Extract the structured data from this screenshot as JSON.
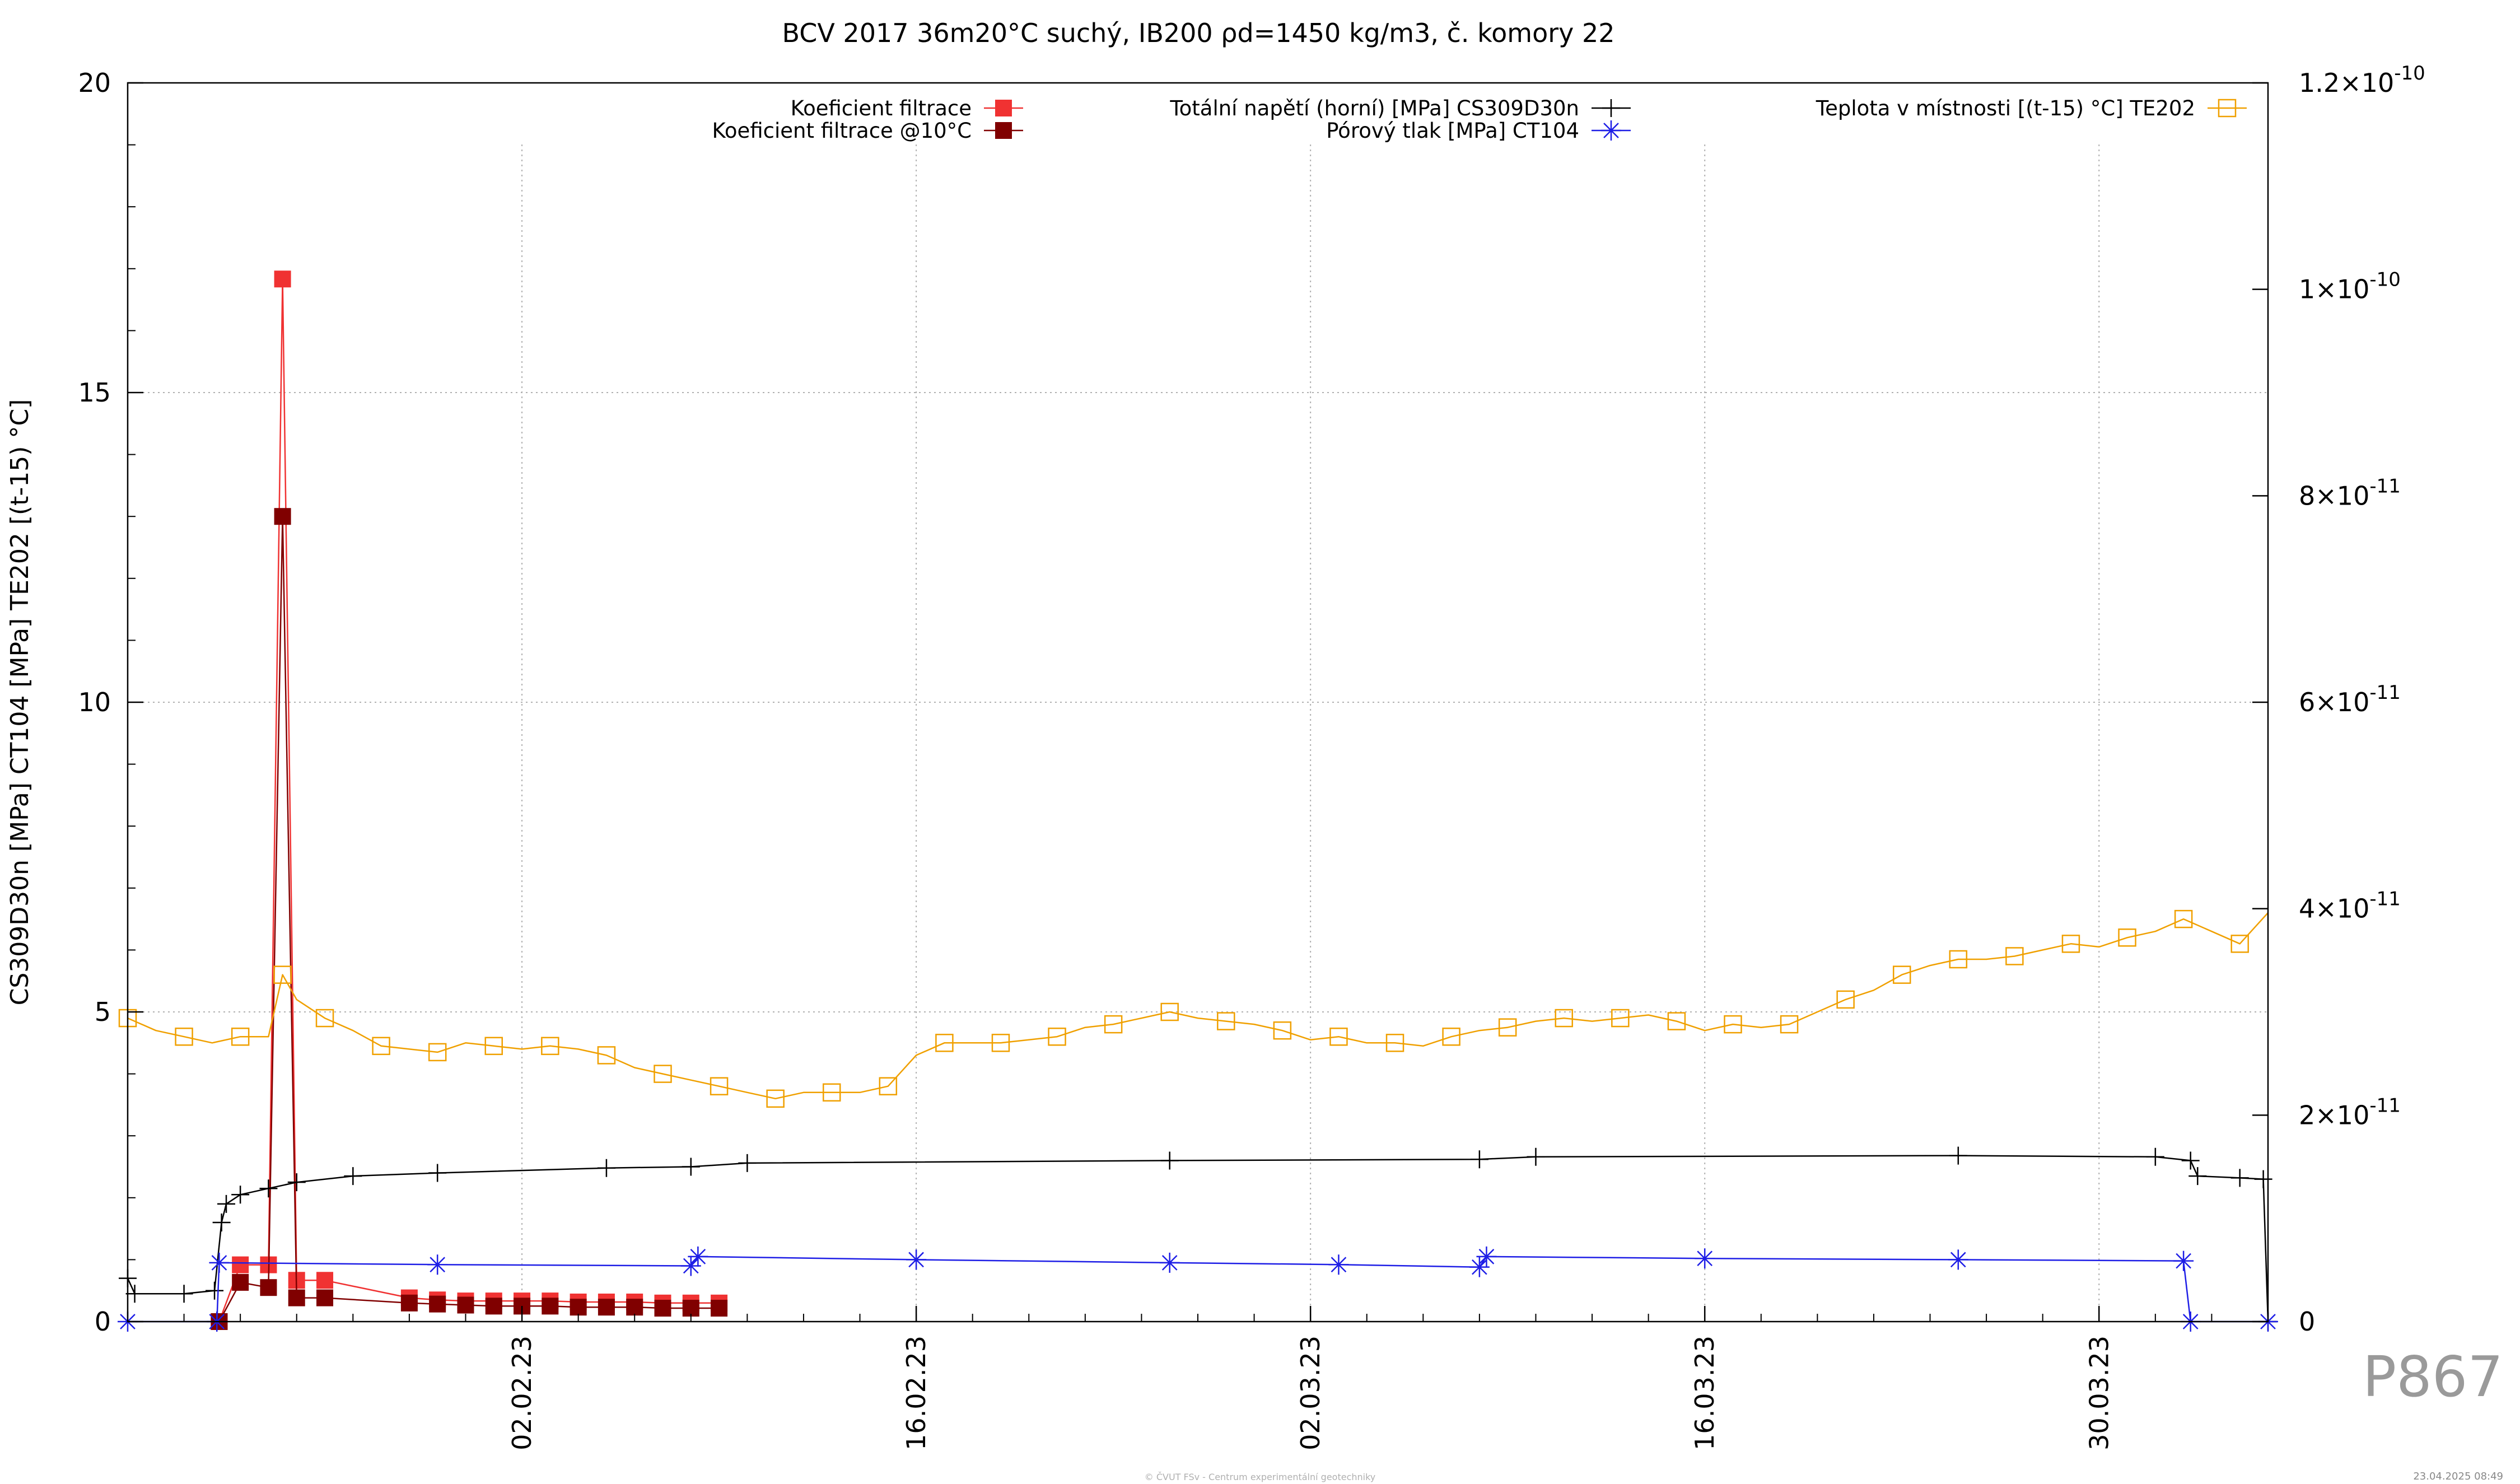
{
  "chart_data": {
    "type": "line",
    "title": "BCV 2017 36m20°C suchý, IB200 ρd=1450 kg/m3, č. komory 22",
    "ylabel_left": "CS309D30n [MPa] CT104 [MPa] TE202 [(t-15) °C]",
    "ylabel_right": "",
    "x_range": [
      "2023-01-19",
      "2023-04-05"
    ],
    "ylim_left": [
      0,
      20
    ],
    "ylim_right": [
      0,
      1.2e-10
    ],
    "yticks_left": [
      "0",
      "5",
      "10",
      "15",
      "20"
    ],
    "yticks_right": [
      {
        "value": 0,
        "base": "0",
        "exp": ""
      },
      {
        "value": 2e-11,
        "base": "2×10",
        "exp": "-11"
      },
      {
        "value": 4e-11,
        "base": "4×10",
        "exp": "-11"
      },
      {
        "value": 6e-11,
        "base": "6×10",
        "exp": "-11"
      },
      {
        "value": 8e-11,
        "base": "8×10",
        "exp": "-11"
      },
      {
        "value": 1e-10,
        "base": "1×10",
        "exp": "-10"
      },
      {
        "value": 1.2e-10,
        "base": "1.2×10",
        "exp": "-10"
      }
    ],
    "xticks": [
      {
        "date": "2023-02-02",
        "label": "02.02.23"
      },
      {
        "date": "2023-02-16",
        "label": "16.02.23"
      },
      {
        "date": "2023-03-02",
        "label": "02.03.23"
      },
      {
        "date": "2023-03-16",
        "label": "16.03.23"
      },
      {
        "date": "2023-03-30",
        "label": "30.03.23"
      }
    ],
    "grid": true,
    "legend_placement": "top",
    "series": [
      {
        "name": "Koeficient filtrace",
        "axis": "right",
        "color": "#f03232",
        "marker": "filled-square",
        "points": [
          [
            "2023-01-22 06:00",
            0
          ],
          [
            "2023-01-23",
            5.5e-12
          ],
          [
            "2023-01-24",
            5.5e-12
          ],
          [
            "2023-01-24 12:00",
            1.01e-10
          ],
          [
            "2023-01-25",
            4e-12
          ],
          [
            "2023-01-26",
            4e-12
          ],
          [
            "2023-01-29",
            2.3e-12
          ],
          [
            "2023-01-30",
            2.1e-12
          ],
          [
            "2023-01-31",
            2e-12
          ],
          [
            "2023-02-01",
            2e-12
          ],
          [
            "2023-02-02",
            2e-12
          ],
          [
            "2023-02-03",
            2e-12
          ],
          [
            "2023-02-04",
            1.9e-12
          ],
          [
            "2023-02-05",
            1.9e-12
          ],
          [
            "2023-02-06",
            1.9e-12
          ],
          [
            "2023-02-07",
            1.8e-12
          ],
          [
            "2023-02-08",
            1.8e-12
          ],
          [
            "2023-02-09",
            1.8e-12
          ]
        ]
      },
      {
        "name": "Koeficient filtrace @10°C",
        "axis": "right",
        "color": "#800000",
        "marker": "filled-square",
        "points": [
          [
            "2023-01-22 06:00",
            0
          ],
          [
            "2023-01-23",
            3.8e-12
          ],
          [
            "2023-01-24",
            3.3e-12
          ],
          [
            "2023-01-24 12:00",
            7.8e-11
          ],
          [
            "2023-01-25",
            2.3e-12
          ],
          [
            "2023-01-26",
            2.3e-12
          ],
          [
            "2023-01-29",
            1.8e-12
          ],
          [
            "2023-01-30",
            1.7e-12
          ],
          [
            "2023-01-31",
            1.6e-12
          ],
          [
            "2023-02-01",
            1.5e-12
          ],
          [
            "2023-02-02",
            1.5e-12
          ],
          [
            "2023-02-03",
            1.5e-12
          ],
          [
            "2023-02-04",
            1.4e-12
          ],
          [
            "2023-02-05",
            1.4e-12
          ],
          [
            "2023-02-06",
            1.4e-12
          ],
          [
            "2023-02-07",
            1.3e-12
          ],
          [
            "2023-02-08",
            1.3e-12
          ],
          [
            "2023-02-09",
            1.3e-12
          ]
        ]
      },
      {
        "name": "Totální napětí (horní) [MPa] CS309D30n",
        "axis": "left",
        "color": "#000000",
        "marker": "plus",
        "points": [
          [
            "2023-01-19",
            0.7
          ],
          [
            "2023-01-19 06:00",
            0.45
          ],
          [
            "2023-01-21",
            0.45
          ],
          [
            "2023-01-22 02:00",
            0.5
          ],
          [
            "2023-01-22 08:00",
            1.6
          ],
          [
            "2023-01-22 12:00",
            1.9
          ],
          [
            "2023-01-23",
            2.05
          ],
          [
            "2023-01-24",
            2.15
          ],
          [
            "2023-01-25",
            2.25
          ],
          [
            "2023-01-27",
            2.35
          ],
          [
            "2023-01-30",
            2.4
          ],
          [
            "2023-02-05",
            2.48
          ],
          [
            "2023-02-08",
            2.5
          ],
          [
            "2023-02-10",
            2.56
          ],
          [
            "2023-02-25",
            2.6
          ],
          [
            "2023-03-08",
            2.62
          ],
          [
            "2023-03-10",
            2.66
          ],
          [
            "2023-03-25",
            2.68
          ],
          [
            "2023-04-01",
            2.66
          ],
          [
            "2023-04-02 06:00",
            2.6
          ],
          [
            "2023-04-02 12:00",
            2.35
          ],
          [
            "2023-04-04",
            2.32
          ],
          [
            "2023-04-04 20:00",
            2.3
          ],
          [
            "2023-04-05",
            0
          ]
        ]
      },
      {
        "name": "Pórový tlak [MPa] CT104",
        "axis": "left",
        "color": "#1e1ee6",
        "marker": "star",
        "points": [
          [
            "2023-01-19",
            0
          ],
          [
            "2023-01-22 04:00",
            0
          ],
          [
            "2023-01-22 06:00",
            0.95
          ],
          [
            "2023-01-30",
            0.92
          ],
          [
            "2023-02-08",
            0.9
          ],
          [
            "2023-02-08 06:00",
            1.05
          ],
          [
            "2023-02-16",
            1.0
          ],
          [
            "2023-02-25",
            0.95
          ],
          [
            "2023-03-03",
            0.92
          ],
          [
            "2023-03-08",
            0.88
          ],
          [
            "2023-03-08 06:00",
            1.05
          ],
          [
            "2023-03-16",
            1.02
          ],
          [
            "2023-03-25",
            1.0
          ],
          [
            "2023-04-02",
            0.98
          ],
          [
            "2023-04-02 06:00",
            0
          ],
          [
            "2023-04-05",
            0
          ]
        ]
      },
      {
        "name": "Teplota v místnosti [(t-15) °C] TE202",
        "axis": "left",
        "color": "#f0a000",
        "marker": "open-square",
        "points": [
          [
            "2023-01-19",
            4.9
          ],
          [
            "2023-01-20",
            4.7
          ],
          [
            "2023-01-21",
            4.6
          ],
          [
            "2023-01-22",
            4.5
          ],
          [
            "2023-01-23",
            4.6
          ],
          [
            "2023-01-24",
            4.6
          ],
          [
            "2023-01-24 12:00",
            5.6
          ],
          [
            "2023-01-25",
            5.2
          ],
          [
            "2023-01-26",
            4.9
          ],
          [
            "2023-01-27",
            4.7
          ],
          [
            "2023-01-28",
            4.45
          ],
          [
            "2023-01-29",
            4.4
          ],
          [
            "2023-01-30",
            4.35
          ],
          [
            "2023-01-31",
            4.5
          ],
          [
            "2023-02-01",
            4.45
          ],
          [
            "2023-02-02",
            4.4
          ],
          [
            "2023-02-03",
            4.45
          ],
          [
            "2023-02-04",
            4.4
          ],
          [
            "2023-02-05",
            4.3
          ],
          [
            "2023-02-06",
            4.1
          ],
          [
            "2023-02-07",
            4.0
          ],
          [
            "2023-02-08",
            3.9
          ],
          [
            "2023-02-09",
            3.8
          ],
          [
            "2023-02-10",
            3.7
          ],
          [
            "2023-02-11",
            3.6
          ],
          [
            "2023-02-12",
            3.7
          ],
          [
            "2023-02-13",
            3.7
          ],
          [
            "2023-02-14",
            3.7
          ],
          [
            "2023-02-15",
            3.8
          ],
          [
            "2023-02-16",
            4.3
          ],
          [
            "2023-02-17",
            4.5
          ],
          [
            "2023-02-18",
            4.5
          ],
          [
            "2023-02-19",
            4.5
          ],
          [
            "2023-02-20",
            4.55
          ],
          [
            "2023-02-21",
            4.6
          ],
          [
            "2023-02-22",
            4.75
          ],
          [
            "2023-02-23",
            4.8
          ],
          [
            "2023-02-24",
            4.9
          ],
          [
            "2023-02-25",
            5.0
          ],
          [
            "2023-02-26",
            4.9
          ],
          [
            "2023-02-27",
            4.85
          ],
          [
            "2023-02-28",
            4.8
          ],
          [
            "2023-03-01",
            4.7
          ],
          [
            "2023-03-02",
            4.55
          ],
          [
            "2023-03-03",
            4.6
          ],
          [
            "2023-03-04",
            4.5
          ],
          [
            "2023-03-05",
            4.5
          ],
          [
            "2023-03-06",
            4.45
          ],
          [
            "2023-03-07",
            4.6
          ],
          [
            "2023-03-08",
            4.7
          ],
          [
            "2023-03-09",
            4.75
          ],
          [
            "2023-03-10",
            4.85
          ],
          [
            "2023-03-11",
            4.9
          ],
          [
            "2023-03-12",
            4.85
          ],
          [
            "2023-03-13",
            4.9
          ],
          [
            "2023-03-14",
            4.95
          ],
          [
            "2023-03-15",
            4.85
          ],
          [
            "2023-03-16",
            4.7
          ],
          [
            "2023-03-17",
            4.8
          ],
          [
            "2023-03-18",
            4.75
          ],
          [
            "2023-03-19",
            4.8
          ],
          [
            "2023-03-20",
            5.0
          ],
          [
            "2023-03-21",
            5.2
          ],
          [
            "2023-03-22",
            5.35
          ],
          [
            "2023-03-23",
            5.6
          ],
          [
            "2023-03-24",
            5.75
          ],
          [
            "2023-03-25",
            5.85
          ],
          [
            "2023-03-26",
            5.85
          ],
          [
            "2023-03-27",
            5.9
          ],
          [
            "2023-03-28",
            6.0
          ],
          [
            "2023-03-29",
            6.1
          ],
          [
            "2023-03-30",
            6.05
          ],
          [
            "2023-03-31",
            6.2
          ],
          [
            "2023-04-01",
            6.3
          ],
          [
            "2023-04-02",
            6.5
          ],
          [
            "2023-04-03",
            6.3
          ],
          [
            "2023-04-04",
            6.1
          ],
          [
            "2023-04-05",
            6.6
          ]
        ]
      }
    ]
  },
  "footer": "© ČVUT FSv - Centrum experimentální geotechniky",
  "timestamp": "23.04.2025 08:49",
  "plot_code": "P867"
}
